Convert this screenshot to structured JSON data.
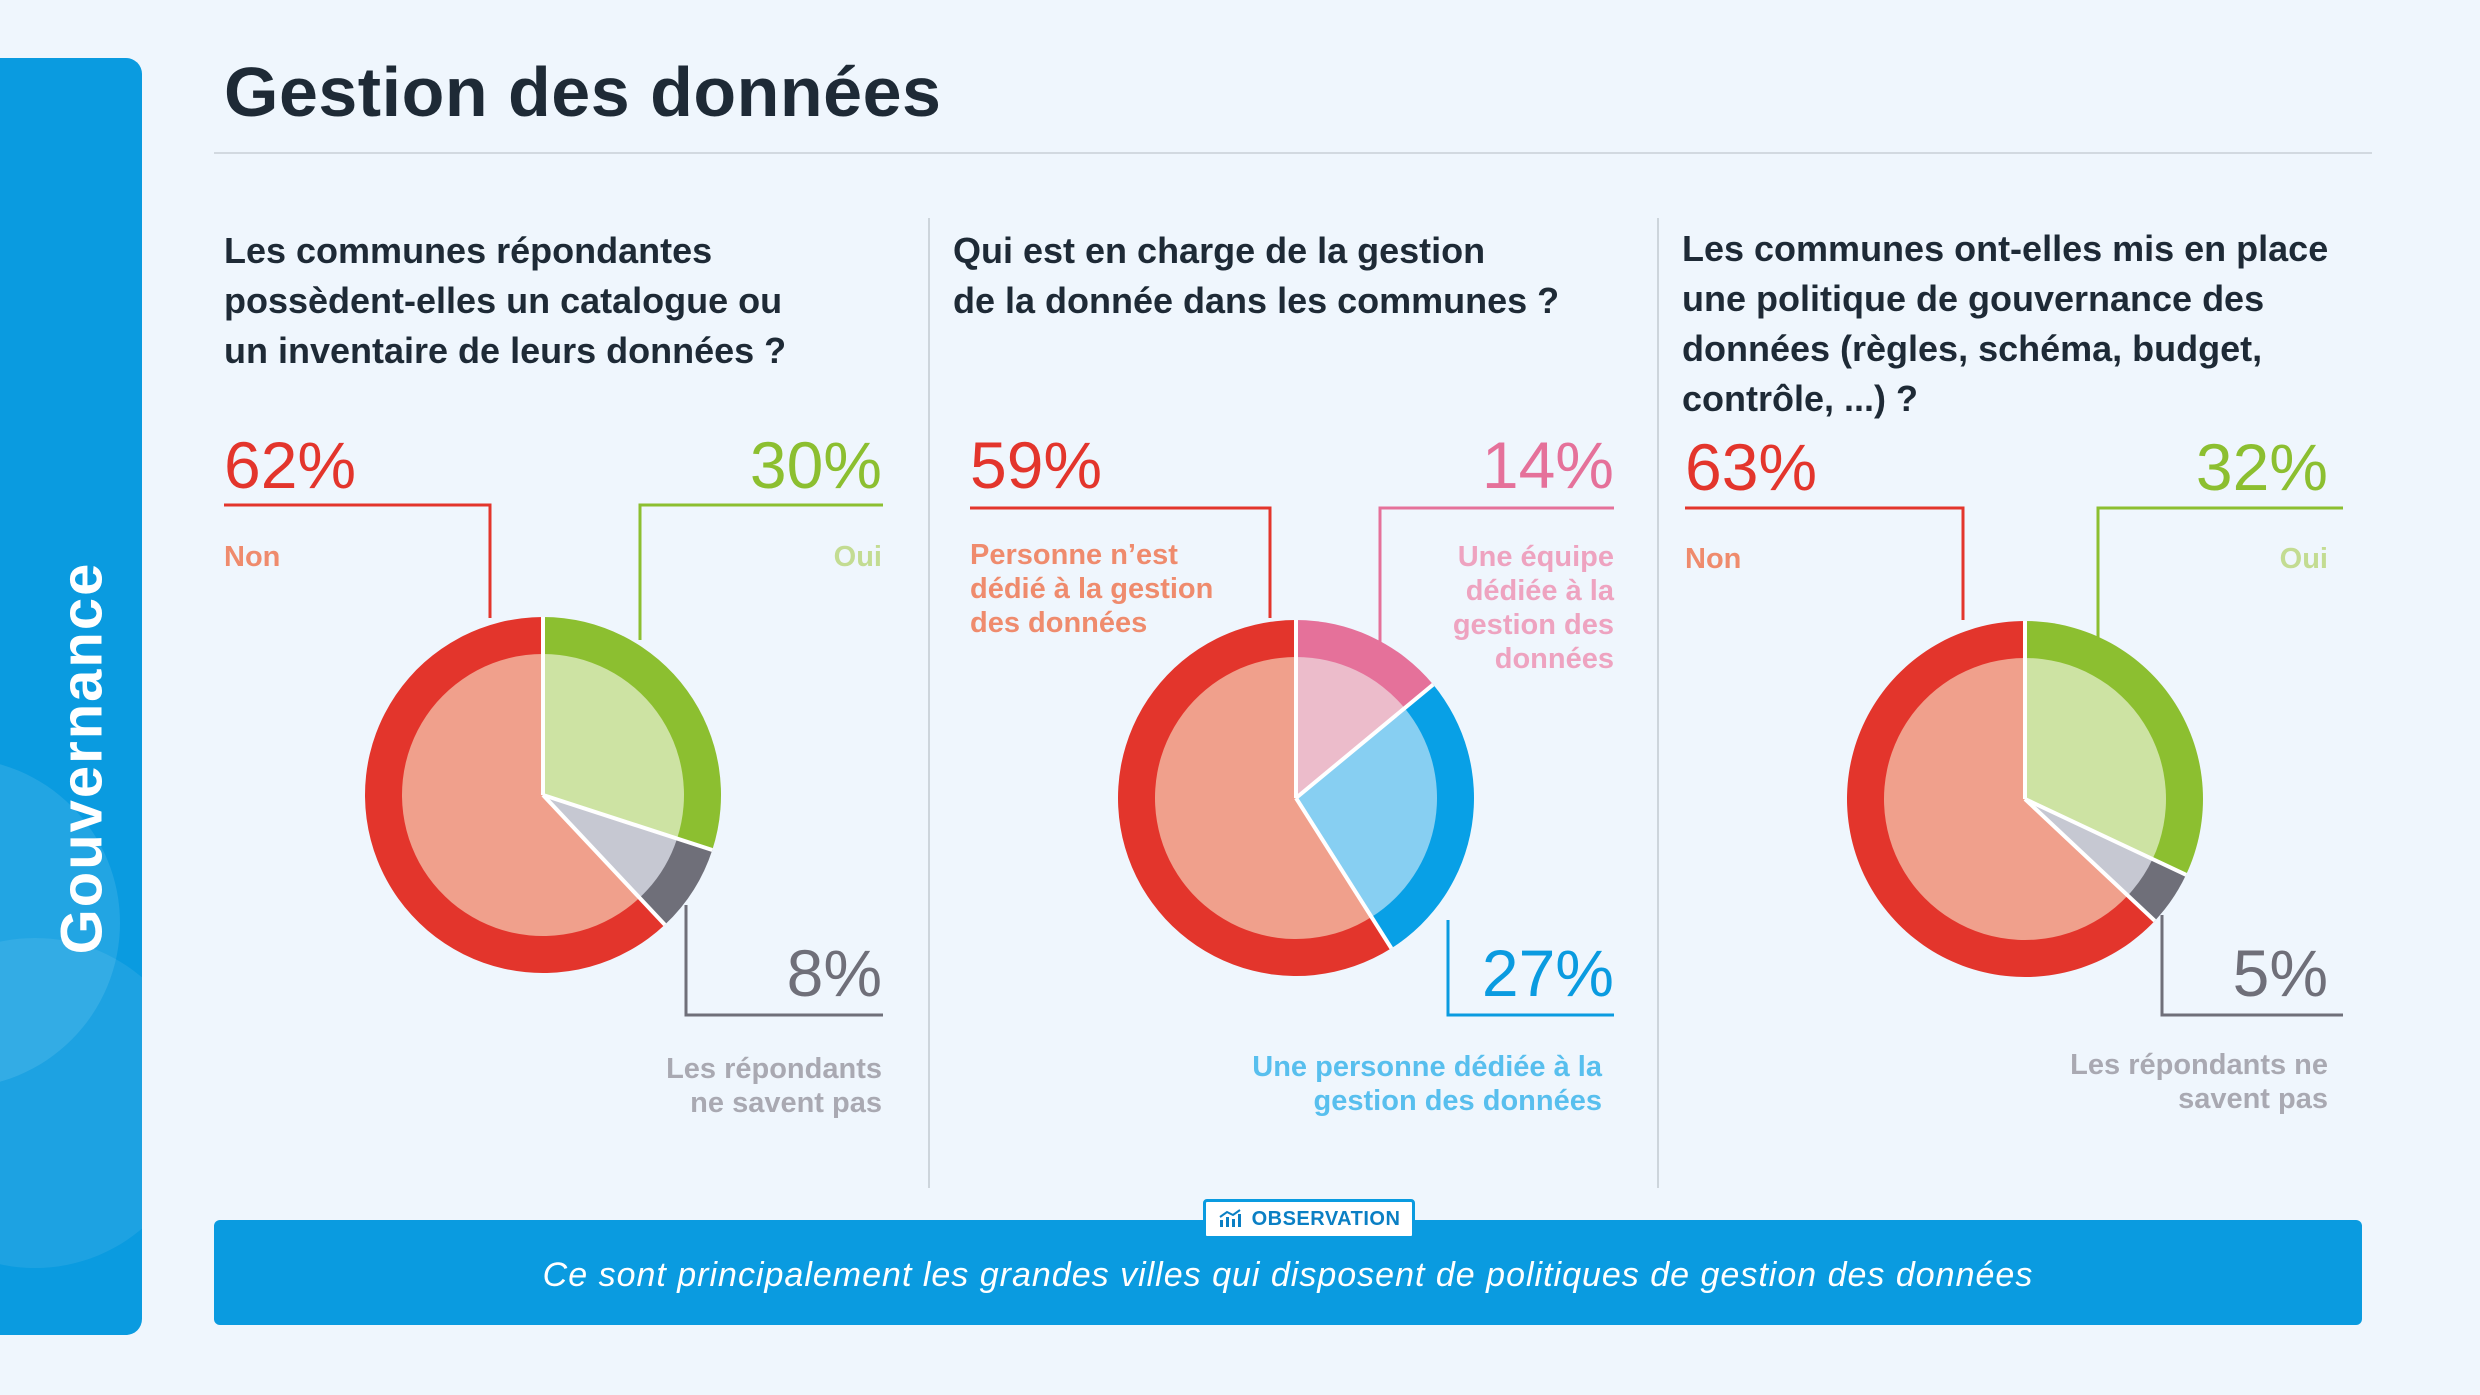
{
  "page": {
    "title": "Gestion des données",
    "sidebar_label": "Gouvernance"
  },
  "colors": {
    "red": "#e3352c",
    "red_light": "#f0a08c",
    "green": "#8cbf30",
    "green_light": "#cde3a3",
    "gray": "#6f6f79",
    "gray_light": "#c6c8d2",
    "pink": "#e5719a",
    "pink_light": "#ecbccb",
    "blue": "#08a0e6",
    "blue_light": "#87cff2",
    "banner": "#0a9be0"
  },
  "panels": [
    {
      "question": [
        "Les communes répondantes",
        "possèdent-elles un catalogue ou",
        "un inventaire de leurs données ?"
      ],
      "callouts": [
        {
          "pct": "62%",
          "label": [
            "Non"
          ]
        },
        {
          "pct": "30%",
          "label": [
            "Oui"
          ]
        },
        {
          "pct": "8%",
          "label": [
            "Les répondants",
            "ne savent pas"
          ]
        }
      ]
    },
    {
      "question": [
        "Qui est en charge de la gestion",
        "de la donnée dans les communes ?"
      ],
      "callouts": [
        {
          "pct": "59%",
          "label": [
            "Personne n’est",
            "dédié à la gestion",
            "des données"
          ]
        },
        {
          "pct": "14%",
          "label": [
            "Une équipe",
            "dédiée à la",
            "gestion des",
            "données"
          ]
        },
        {
          "pct": "27%",
          "label": [
            "Une personne dédiée à la",
            "gestion des données"
          ]
        }
      ]
    },
    {
      "question": [
        "Les communes ont-elles mis en place",
        "une politique de gouvernance des",
        "données (règles, schéma, budget,",
        "contrôle, ...) ?"
      ],
      "callouts": [
        {
          "pct": "63%",
          "label": [
            "Non"
          ]
        },
        {
          "pct": "32%",
          "label": [
            "Oui"
          ]
        },
        {
          "pct": "5%",
          "label": [
            "Les répondants ne",
            "savent pas"
          ]
        }
      ]
    }
  ],
  "chart_data": [
    {
      "type": "pie",
      "title": "Les communes répondantes possèdent-elles un catalogue ou un inventaire de leurs données ?",
      "categories": [
        "Oui",
        "Les répondants ne savent pas",
        "Non"
      ],
      "values": [
        30,
        8,
        62
      ]
    },
    {
      "type": "pie",
      "title": "Qui est en charge de la gestion de la donnée dans les communes ?",
      "categories": [
        "Une équipe dédiée à la gestion des données",
        "Une personne dédiée à la gestion des données",
        "Personne n’est dédié à la gestion des données"
      ],
      "values": [
        14,
        27,
        59
      ]
    },
    {
      "type": "pie",
      "title": "Les communes ont-elles mis en place une politique de gouvernance des données (règles, schéma, budget, contrôle, ...) ?",
      "categories": [
        "Oui",
        "Les répondants ne savent pas",
        "Non"
      ],
      "values": [
        32,
        5,
        63
      ]
    }
  ],
  "observation": {
    "badge": "OBSERVATION",
    "text": "Ce sont principalement les grandes villes qui disposent de politiques de gestion des données",
    "icon": "chart-icon"
  }
}
